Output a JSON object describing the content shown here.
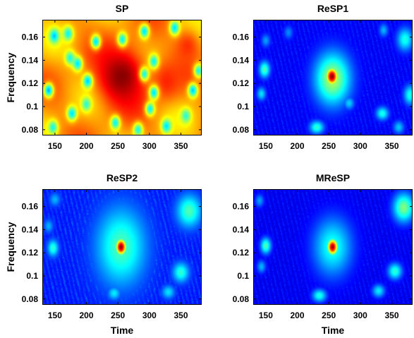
{
  "colors": {
    "background": "#ffffff",
    "text": "#000000",
    "axis": "#000000",
    "colormap": "jet",
    "jet_stops": [
      "#00007f",
      "#0000ff",
      "#0080ff",
      "#00ffff",
      "#80ff80",
      "#ffff00",
      "#ff8000",
      "#ff0000",
      "#7f0000"
    ]
  },
  "chart_data": [
    {
      "type": "heatmap",
      "title": "SP",
      "xlabel": "",
      "ylabel": "Frequency",
      "xlim": [
        130,
        383
      ],
      "ylim": [
        0.075,
        0.175
      ],
      "xticks": [
        150,
        200,
        250,
        300,
        350
      ],
      "yticks": [
        0.08,
        0.1,
        0.12,
        0.14,
        0.16
      ],
      "xtick_labels": [
        "150",
        "200",
        "250",
        "300",
        "350"
      ],
      "ytick_labels": [
        "0.08",
        "0.1",
        "0.12",
        "0.14",
        "0.16"
      ],
      "colormap": "jet",
      "base_level": 0.72,
      "blobs": [
        {
          "x": 256,
          "y": 0.126,
          "level": 0.99,
          "spread_x": 28,
          "spread_y": 0.018
        },
        {
          "x": 328,
          "y": 0.122,
          "level": 0.84,
          "spread_x": 16,
          "spread_y": 0.012
        },
        {
          "x": 360,
          "y": 0.152,
          "level": 0.83,
          "spread_x": 14,
          "spread_y": 0.01
        }
      ],
      "holes": [
        {
          "x": 149,
          "y": 0.161,
          "level": 0.32
        },
        {
          "x": 171,
          "y": 0.163,
          "level": 0.38
        },
        {
          "x": 215,
          "y": 0.156,
          "level": 0.35
        },
        {
          "x": 257,
          "y": 0.158,
          "level": 0.38
        },
        {
          "x": 292,
          "y": 0.165,
          "level": 0.35
        },
        {
          "x": 340,
          "y": 0.168,
          "level": 0.35
        },
        {
          "x": 174,
          "y": 0.142,
          "level": 0.4
        },
        {
          "x": 186,
          "y": 0.137,
          "level": 0.35
        },
        {
          "x": 307,
          "y": 0.139,
          "level": 0.38
        },
        {
          "x": 292,
          "y": 0.128,
          "level": 0.4
        },
        {
          "x": 140,
          "y": 0.114,
          "level": 0.3
        },
        {
          "x": 202,
          "y": 0.122,
          "level": 0.33
        },
        {
          "x": 200,
          "y": 0.102,
          "level": 0.42
        },
        {
          "x": 307,
          "y": 0.112,
          "level": 0.35
        },
        {
          "x": 301,
          "y": 0.098,
          "level": 0.38
        },
        {
          "x": 369,
          "y": 0.114,
          "level": 0.33
        },
        {
          "x": 147,
          "y": 0.082,
          "level": 0.4
        },
        {
          "x": 177,
          "y": 0.094,
          "level": 0.35
        },
        {
          "x": 246,
          "y": 0.086,
          "level": 0.38
        },
        {
          "x": 282,
          "y": 0.08,
          "level": 0.4
        },
        {
          "x": 327,
          "y": 0.083,
          "level": 0.35
        },
        {
          "x": 358,
          "y": 0.092,
          "level": 0.42
        },
        {
          "x": 378,
          "y": 0.131,
          "level": 0.4
        }
      ]
    },
    {
      "type": "heatmap",
      "title": "ReSP1",
      "xlabel": "",
      "ylabel": "",
      "xlim": [
        130,
        383
      ],
      "ylim": [
        0.075,
        0.175
      ],
      "xticks": [
        150,
        200,
        250,
        300,
        350
      ],
      "yticks": [
        0.08,
        0.1,
        0.12,
        0.14,
        0.16
      ],
      "xtick_labels": [
        "150",
        "200",
        "250",
        "300",
        "350"
      ],
      "ytick_labels": [
        "0.08",
        "0.1",
        "0.12",
        "0.14",
        "0.16"
      ],
      "colormap": "jet",
      "base_level": 0.11,
      "blobs": [
        {
          "x": 255,
          "y": 0.126,
          "level": 0.98,
          "spread_x": 7,
          "spread_y": 0.0055
        },
        {
          "x": 256,
          "y": 0.124,
          "level": 0.55,
          "spread_x": 20,
          "spread_y": 0.016
        },
        {
          "x": 148,
          "y": 0.132,
          "level": 0.45,
          "spread_x": 6,
          "spread_y": 0.005
        },
        {
          "x": 143,
          "y": 0.111,
          "level": 0.35,
          "spread_x": 5,
          "spread_y": 0.004
        },
        {
          "x": 231,
          "y": 0.082,
          "level": 0.42,
          "spread_x": 8,
          "spread_y": 0.004
        },
        {
          "x": 282,
          "y": 0.103,
          "level": 0.33,
          "spread_x": 6,
          "spread_y": 0.004
        },
        {
          "x": 335,
          "y": 0.094,
          "level": 0.4,
          "spread_x": 7,
          "spread_y": 0.004
        },
        {
          "x": 371,
          "y": 0.158,
          "level": 0.4,
          "spread_x": 9,
          "spread_y": 0.007
        },
        {
          "x": 379,
          "y": 0.11,
          "level": 0.4,
          "spread_x": 7,
          "spread_y": 0.006
        },
        {
          "x": 150,
          "y": 0.157,
          "level": 0.28,
          "spread_x": 5,
          "spread_y": 0.004
        },
        {
          "x": 186,
          "y": 0.164,
          "level": 0.26,
          "spread_x": 5,
          "spread_y": 0.004
        },
        {
          "x": 337,
          "y": 0.166,
          "level": 0.3,
          "spread_x": 5,
          "spread_y": 0.004
        },
        {
          "x": 361,
          "y": 0.082,
          "level": 0.32,
          "spread_x": 6,
          "spread_y": 0.004
        }
      ]
    },
    {
      "type": "heatmap",
      "title": "ReSP2",
      "xlabel": "Time",
      "ylabel": "Frequency",
      "xlim": [
        130,
        383
      ],
      "ylim": [
        0.075,
        0.175
      ],
      "xticks": [
        150,
        200,
        250,
        300,
        350
      ],
      "yticks": [
        0.08,
        0.1,
        0.12,
        0.14,
        0.16
      ],
      "xtick_labels": [
        "150",
        "200",
        "250",
        "300",
        "350"
      ],
      "ytick_labels": [
        "0.08",
        "0.1",
        "0.12",
        "0.14",
        "0.16"
      ],
      "colormap": "jet",
      "base_level": 0.14,
      "blobs": [
        {
          "x": 255,
          "y": 0.125,
          "level": 0.98,
          "spread_x": 6,
          "spread_y": 0.005
        },
        {
          "x": 255,
          "y": 0.125,
          "level": 0.45,
          "spread_x": 28,
          "spread_y": 0.024
        },
        {
          "x": 147,
          "y": 0.124,
          "level": 0.42,
          "spread_x": 6,
          "spread_y": 0.005
        },
        {
          "x": 140,
          "y": 0.143,
          "level": 0.3,
          "spread_x": 5,
          "spread_y": 0.004
        },
        {
          "x": 244,
          "y": 0.085,
          "level": 0.36,
          "spread_x": 7,
          "spread_y": 0.004
        },
        {
          "x": 363,
          "y": 0.156,
          "level": 0.45,
          "spread_x": 14,
          "spread_y": 0.01
        },
        {
          "x": 350,
          "y": 0.103,
          "level": 0.42,
          "spread_x": 9,
          "spread_y": 0.006
        },
        {
          "x": 330,
          "y": 0.086,
          "level": 0.35,
          "spread_x": 7,
          "spread_y": 0.004
        },
        {
          "x": 150,
          "y": 0.166,
          "level": 0.3,
          "spread_x": 6,
          "spread_y": 0.004
        }
      ]
    },
    {
      "type": "heatmap",
      "title": "MReSP",
      "xlabel": "Time",
      "ylabel": "",
      "xlim": [
        130,
        383
      ],
      "ylim": [
        0.075,
        0.175
      ],
      "xticks": [
        150,
        200,
        250,
        300,
        350
      ],
      "yticks": [
        0.08,
        0.1,
        0.12,
        0.14,
        0.16
      ],
      "xtick_labels": [
        "150",
        "200",
        "250",
        "300",
        "350"
      ],
      "ytick_labels": [
        "0.08",
        "0.1",
        "0.12",
        "0.14",
        "0.16"
      ],
      "colormap": "jet",
      "base_level": 0.1,
      "blobs": [
        {
          "x": 256,
          "y": 0.125,
          "level": 0.96,
          "spread_x": 6,
          "spread_y": 0.005
        },
        {
          "x": 256,
          "y": 0.125,
          "level": 0.4,
          "spread_x": 22,
          "spread_y": 0.018
        },
        {
          "x": 150,
          "y": 0.126,
          "level": 0.45,
          "spread_x": 6,
          "spread_y": 0.005
        },
        {
          "x": 143,
          "y": 0.108,
          "level": 0.3,
          "spread_x": 5,
          "spread_y": 0.004
        },
        {
          "x": 235,
          "y": 0.083,
          "level": 0.4,
          "spread_x": 8,
          "spread_y": 0.004
        },
        {
          "x": 369,
          "y": 0.159,
          "level": 0.5,
          "spread_x": 12,
          "spread_y": 0.009
        },
        {
          "x": 355,
          "y": 0.104,
          "level": 0.42,
          "spread_x": 8,
          "spread_y": 0.005
        },
        {
          "x": 329,
          "y": 0.087,
          "level": 0.36,
          "spread_x": 7,
          "spread_y": 0.004
        },
        {
          "x": 140,
          "y": 0.165,
          "level": 0.28,
          "spread_x": 5,
          "spread_y": 0.004
        }
      ]
    }
  ]
}
